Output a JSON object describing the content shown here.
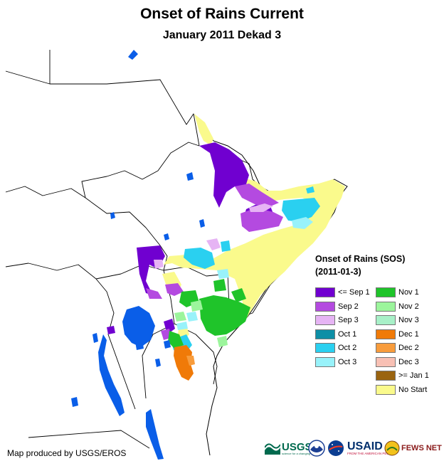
{
  "title": "Onset of Rains Current",
  "subtitle": "January 2011 Dekad 3",
  "legend": {
    "title": "Onset of Rains (SOS)",
    "date": "(2011-01-3)",
    "items": [
      {
        "label": "<= Sep 1",
        "color": "#7000d0"
      },
      {
        "label": "Sep 2",
        "color": "#b44ae0"
      },
      {
        "label": "Sep 3",
        "color": "#e6b4f4"
      },
      {
        "label": "Oct 1",
        "color": "#0e8fa6"
      },
      {
        "label": "Oct 2",
        "color": "#2ad0f0"
      },
      {
        "label": "Oct 3",
        "color": "#98f2fa"
      },
      {
        "label": "Nov 1",
        "color": "#1fc42a"
      },
      {
        "label": "Nov 2",
        "color": "#9cf59c"
      },
      {
        "label": "Nov 3",
        "color": "#a8f0c8"
      },
      {
        "label": "Dec 1",
        "color": "#f07a08"
      },
      {
        "label": "Dec 2",
        "color": "#f89c3c"
      },
      {
        "label": "Dec 3",
        "color": "#f8c0b4"
      },
      {
        "label": ">= Jan 1",
        "color": "#9a6410"
      },
      {
        "label": "No Start",
        "color": "#fafa8c"
      }
    ]
  },
  "credit": "Map produced by USGS/EROS",
  "logos": {
    "usgs": "USGS",
    "usgs_tagline": "science for a changing world",
    "usaid": "USAID",
    "usaid_tagline": "FROM THE AMERICAN PEOPLE",
    "fewsnet": "FEWS NET"
  },
  "colors": {
    "water": "#0a5ee8",
    "border": "#000000"
  }
}
